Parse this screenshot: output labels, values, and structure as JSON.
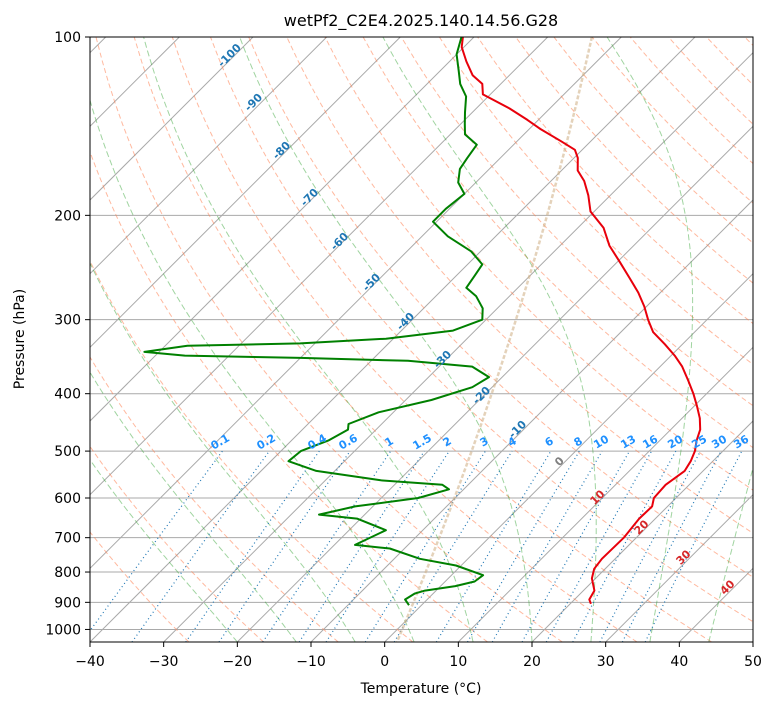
{
  "chart_data": {
    "type": "line",
    "title": "wetPf2_C2E4.2025.140.14.56.G28",
    "xlabel": "Temperature (°C)",
    "ylabel": "Pressure (hPa)",
    "xlim": [
      -40,
      50
    ],
    "ylim": [
      1050,
      100
    ],
    "y_scale": "log",
    "x_ticks": [
      "−40",
      "−30",
      "−20",
      "−10",
      "0",
      "10",
      "20",
      "30",
      "40",
      "50"
    ],
    "y_ticks": [
      "100",
      "200",
      "300",
      "400",
      "500",
      "600",
      "700",
      "800",
      "900",
      "1000"
    ],
    "grid": true,
    "skew": 45,
    "series": [
      {
        "color": "#e8000b",
        "points": [
          [
            22.8,
            905
          ],
          [
            22,
            890
          ],
          [
            21.5,
            860
          ],
          [
            19.5,
            820
          ],
          [
            18.5,
            790
          ],
          [
            18.2,
            760
          ],
          [
            18.3,
            700
          ],
          [
            17.8,
            650
          ],
          [
            17.9,
            620
          ],
          [
            17,
            600
          ],
          [
            16.8,
            570
          ],
          [
            17.5,
            540
          ],
          [
            17,
            520
          ],
          [
            16.2,
            500
          ],
          [
            15,
            480
          ],
          [
            14,
            460
          ],
          [
            12.4,
            440
          ],
          [
            10.4,
            420
          ],
          [
            8.2,
            400
          ],
          [
            5.7,
            380
          ],
          [
            3,
            360
          ],
          [
            0.5,
            345
          ],
          [
            -2.4,
            330
          ],
          [
            -5.6,
            315
          ],
          [
            -8,
            300
          ],
          [
            -10.3,
            285
          ],
          [
            -13,
            270
          ],
          [
            -16.2,
            255
          ],
          [
            -19.6,
            240
          ],
          [
            -23.3,
            225
          ],
          [
            -26.5,
            210
          ],
          [
            -30.5,
            197
          ],
          [
            -33,
            185
          ],
          [
            -35.5,
            175
          ],
          [
            -37.8,
            168
          ],
          [
            -39.5,
            160
          ],
          [
            -41,
            155
          ],
          [
            -44,
            150
          ],
          [
            -48.5,
            143
          ],
          [
            -51.5,
            138
          ],
          [
            -55.5,
            132
          ],
          [
            -61,
            125
          ],
          [
            -62.5,
            120
          ],
          [
            -65,
            116
          ],
          [
            -67.7,
            110
          ],
          [
            -70.3,
            104
          ],
          [
            -71.5,
            100
          ]
        ]
      },
      {
        "color": "#008000",
        "points": [
          [
            -1.7,
            910
          ],
          [
            -3,
            890
          ],
          [
            -2.5,
            870
          ],
          [
            -1.5,
            860
          ],
          [
            2,
            845
          ],
          [
            4,
            830
          ],
          [
            4.3,
            810
          ],
          [
            -0.7,
            780
          ],
          [
            -6.5,
            760
          ],
          [
            -12,
            730
          ],
          [
            -17.2,
            720
          ],
          [
            -15,
            680
          ],
          [
            -20.5,
            650
          ],
          [
            -26.2,
            640
          ],
          [
            -22.4,
            620
          ],
          [
            -15,
            600
          ],
          [
            -12,
            580
          ],
          [
            -13.5,
            570
          ],
          [
            -22.5,
            560
          ],
          [
            -32.5,
            540
          ],
          [
            -37.6,
            520
          ],
          [
            -37.3,
            500
          ],
          [
            -35,
            480
          ],
          [
            -33.8,
            460
          ],
          [
            -34.5,
            450
          ],
          [
            -32,
            430
          ],
          [
            -26.5,
            410
          ],
          [
            -22.7,
            390
          ],
          [
            -21.8,
            375
          ],
          [
            -25.5,
            360
          ],
          [
            -35,
            352
          ],
          [
            -50,
            348
          ],
          [
            -66,
            345
          ],
          [
            -72,
            340
          ],
          [
            -67,
            332
          ],
          [
            -52,
            329
          ],
          [
            -41,
            323
          ],
          [
            -33,
            313
          ],
          [
            -30.5,
            300
          ],
          [
            -32,
            287
          ],
          [
            -34.5,
            274
          ],
          [
            -37,
            265
          ],
          [
            -37.5,
            253
          ],
          [
            -38,
            242
          ],
          [
            -41.3,
            230
          ],
          [
            -46.5,
            217
          ],
          [
            -50.5,
            205
          ],
          [
            -50.5,
            195
          ],
          [
            -50,
            184
          ],
          [
            -52.4,
            176
          ],
          [
            -54,
            167
          ],
          [
            -54.5,
            160
          ],
          [
            -55,
            152
          ],
          [
            -58,
            146
          ],
          [
            -59.5,
            140
          ],
          [
            -61,
            134
          ],
          [
            -63,
            126
          ],
          [
            -65.5,
            120
          ],
          [
            -67.5,
            114
          ],
          [
            -70,
            107
          ],
          [
            -71.7,
            100
          ]
        ]
      }
    ],
    "dry_adiabat_labels": [
      "-100",
      "-90",
      "-80",
      "-70",
      "-60",
      "-50",
      "-40",
      "-30",
      "-20",
      "-10",
      "0",
      "10",
      "20",
      "30",
      "40"
    ],
    "mixing_ratio_labels": [
      "0.1",
      "0.2",
      "0.4",
      "0.6",
      "1",
      "1.5",
      "2",
      "3",
      "4",
      "6",
      "8",
      "10",
      "13",
      "16",
      "20",
      "25",
      "30",
      "36"
    ],
    "colors": {
      "temperature": "#e8000b",
      "dewpoint": "#008000",
      "isotherm": "#a9a9a9",
      "isobar": "#a9a9a9",
      "dry_adiabat": "#ff7f50",
      "moist_adiabat": "#2ca02c",
      "mixing_ratio": "#1f77b4",
      "lcl_parcel": "#d2b48c",
      "label_cold": "#1f77b4",
      "label_warm": "#d62728",
      "label_zero": "#808080",
      "mixing_label": "#1e90ff"
    }
  }
}
